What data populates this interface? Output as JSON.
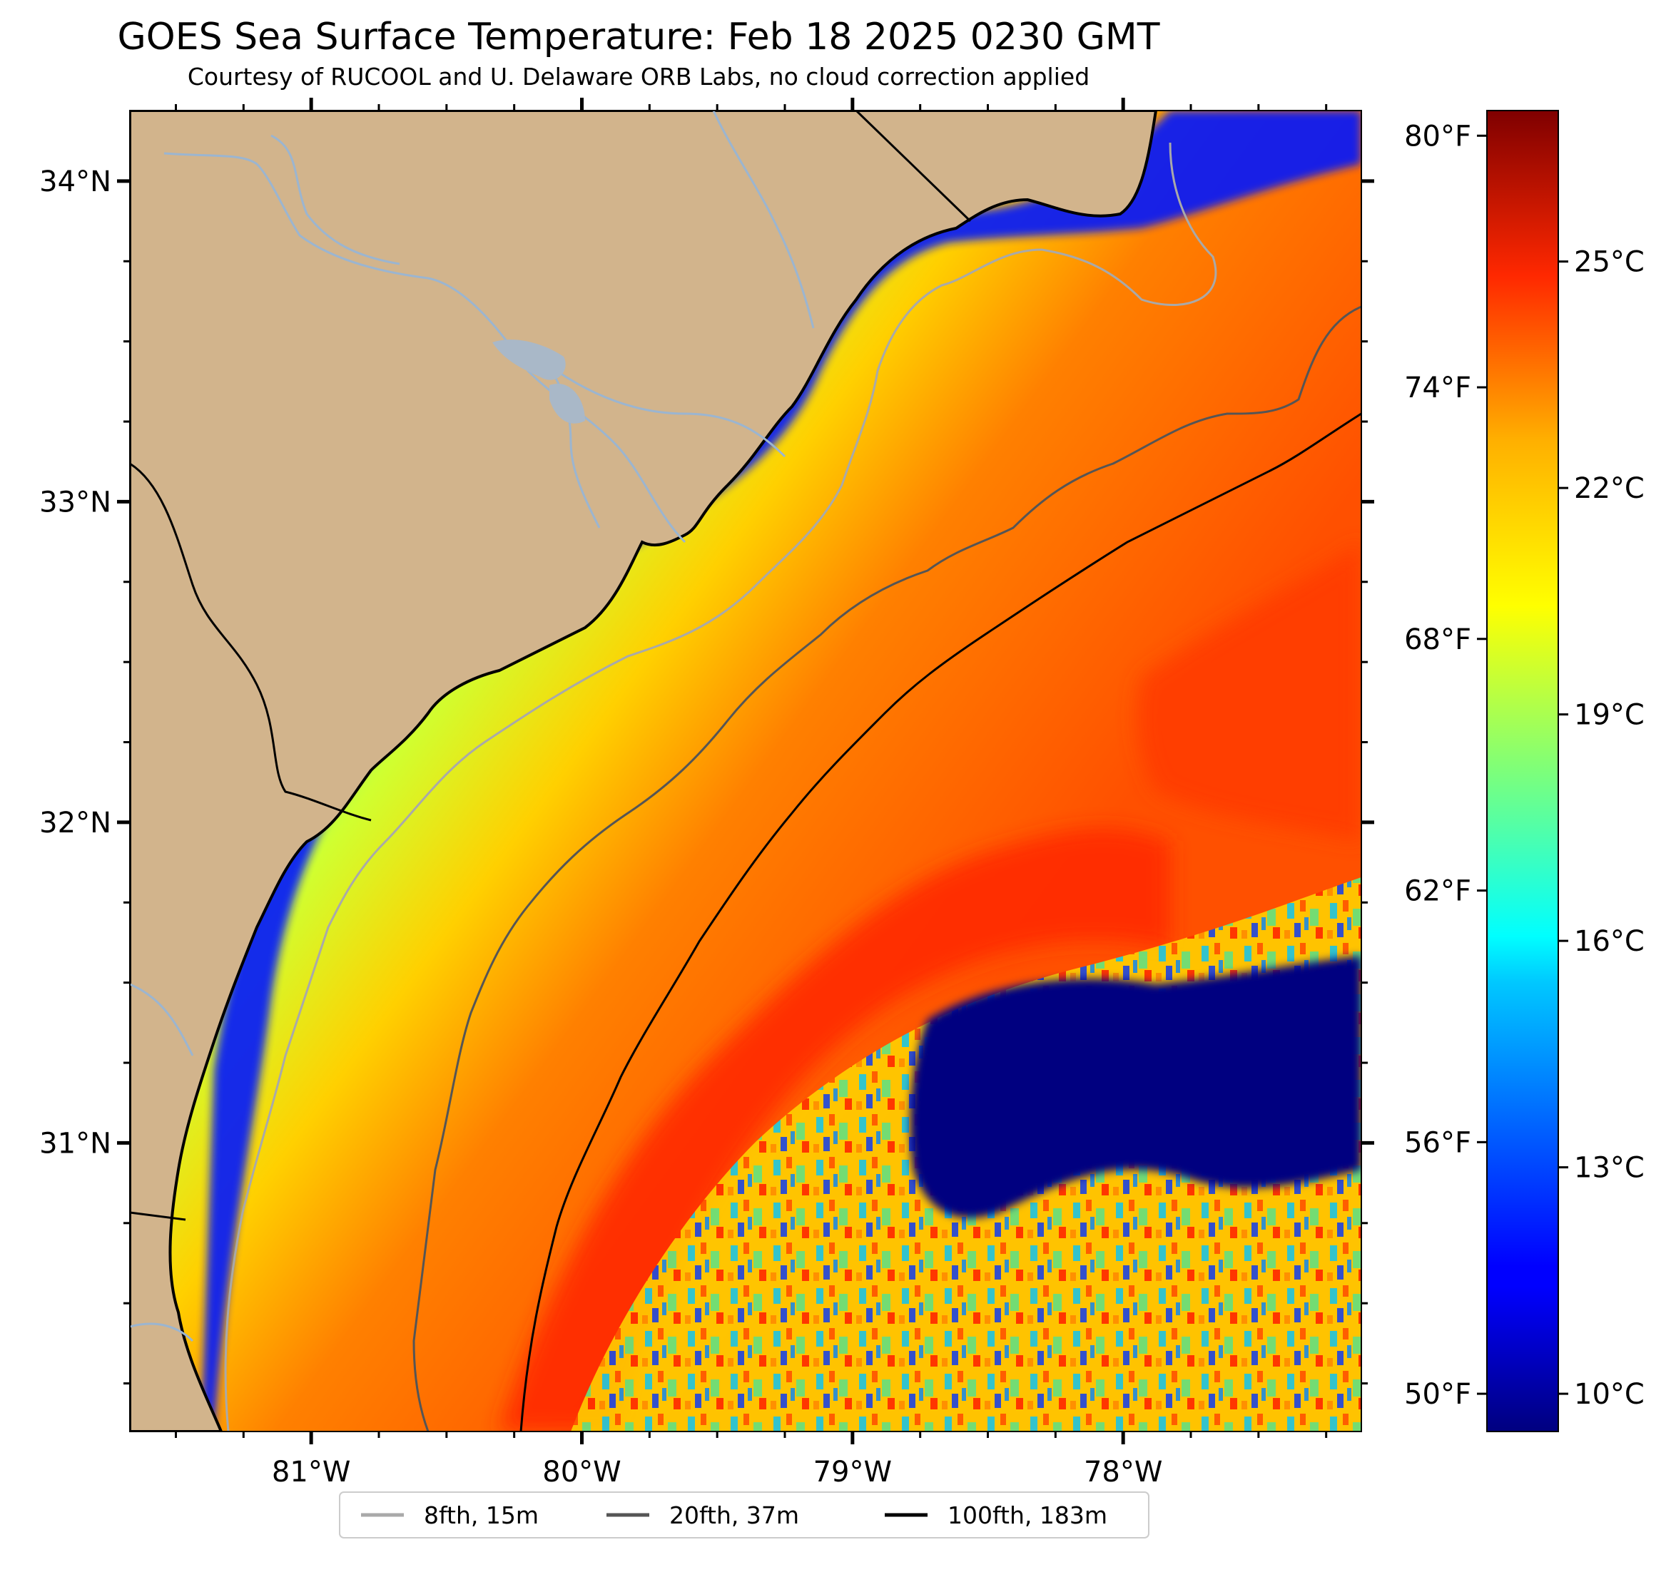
{
  "title": "GOES Sea Surface Temperature: Feb 18 2025 0230 GMT",
  "subtitle": "Courtesy of RUCOOL and U. Delaware ORB Labs, no cloud correction applied",
  "map": {
    "lon_range": [
      -81.67,
      -77.12
    ],
    "lat_range": [
      30.1,
      34.22
    ],
    "lat_ticks": [
      {
        "value": 34,
        "label": "34°N"
      },
      {
        "value": 33,
        "label": "33°N"
      },
      {
        "value": 32,
        "label": "32°N"
      },
      {
        "value": 31,
        "label": "31°N"
      }
    ],
    "lon_ticks": [
      {
        "value": -81,
        "label": "81°W"
      },
      {
        "value": -80,
        "label": "80°W"
      },
      {
        "value": -79,
        "label": "79°W"
      },
      {
        "value": -78,
        "label": "78°W"
      }
    ],
    "colors": {
      "land": "#d2b48c",
      "rivers": "#9bb5d0",
      "coastline": "#000000",
      "state_border": "#000000"
    }
  },
  "colorbar": {
    "range_celsius": [
      9.5,
      27.0
    ],
    "celsius_ticks": [
      {
        "value": 10,
        "label": "10°C"
      },
      {
        "value": 13,
        "label": "13°C"
      },
      {
        "value": 16,
        "label": "16°C"
      },
      {
        "value": 19,
        "label": "19°C"
      },
      {
        "value": 22,
        "label": "22°C"
      },
      {
        "value": 25,
        "label": "25°C"
      }
    ],
    "fahrenheit_ticks": [
      {
        "value": 50,
        "label": "50°F"
      },
      {
        "value": 56,
        "label": "56°F"
      },
      {
        "value": 62,
        "label": "62°F"
      },
      {
        "value": 68,
        "label": "68°F"
      },
      {
        "value": 74,
        "label": "74°F"
      },
      {
        "value": 80,
        "label": "80°F"
      }
    ],
    "colormap": "jet"
  },
  "legend": {
    "items": [
      {
        "label": "8fth, 15m",
        "color": "#a9a9a9"
      },
      {
        "label": "20fth, 37m",
        "color": "#555555"
      },
      {
        "label": "100fth, 183m",
        "color": "#000000"
      }
    ]
  }
}
